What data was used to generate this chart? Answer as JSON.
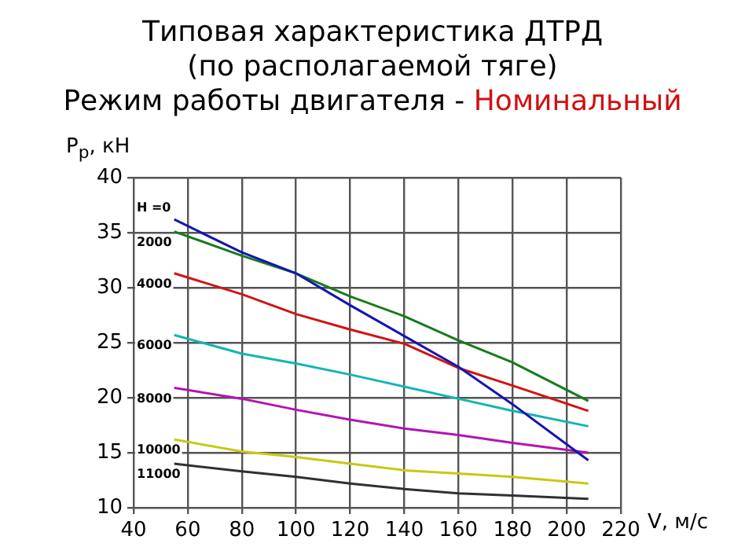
{
  "chart_data": {
    "type": "line",
    "title": "Типовая характеристика ДТРД\n(по располагаемой тяге)",
    "subtitle": "Режим работы двигателя - Номинальный",
    "xlabel": "V, м/с",
    "ylabel": "P$_{р}$, кН",
    "xlim": [
      40,
      220
    ],
    "xticks": [
      40,
      60,
      80,
      100,
      120,
      140,
      160,
      180,
      200,
      220
    ],
    "ylim": [
      10,
      40
    ],
    "yticks": [
      10,
      15,
      20,
      25,
      30,
      35,
      40
    ],
    "grid": true,
    "legend": false,
    "marker": "none",
    "line_style": "solid",
    "x": [
      55,
      80,
      100,
      120,
      140,
      160,
      180,
      208
    ],
    "series": [
      {
        "name": "H =0",
        "color": "#1414b4",
        "values": [
          36.2,
          33.2,
          31.3,
          28.4,
          25.6,
          22.8,
          19.4,
          14.3
        ]
      },
      {
        "name": "2000",
        "color": "#1a7a1a",
        "values": [
          35.1,
          32.9,
          31.3,
          29.2,
          27.4,
          25.2,
          23.2,
          19.7
        ]
      },
      {
        "name": "4000",
        "color": "#d01414",
        "values": [
          31.3,
          29.4,
          27.6,
          26.2,
          24.9,
          22.7,
          21.1,
          18.8
        ]
      },
      {
        "name": "6000",
        "color": "#14b4b4",
        "values": [
          25.7,
          24.0,
          23.1,
          22.1,
          21.0,
          19.9,
          18.8,
          17.4
        ]
      },
      {
        "name": "8000",
        "color": "#b414b4",
        "values": [
          20.9,
          19.9,
          18.9,
          18.0,
          17.2,
          16.6,
          15.9,
          15.0
        ]
      },
      {
        "name": "10000",
        "color": "#c8c814",
        "values": [
          16.2,
          15.1,
          14.6,
          14.0,
          13.4,
          13.1,
          12.8,
          12.2
        ]
      },
      {
        "name": "11000",
        "color": "#303030",
        "values": [
          14.0,
          13.3,
          12.8,
          12.2,
          11.7,
          11.3,
          11.1,
          10.8
        ]
      }
    ]
  }
}
